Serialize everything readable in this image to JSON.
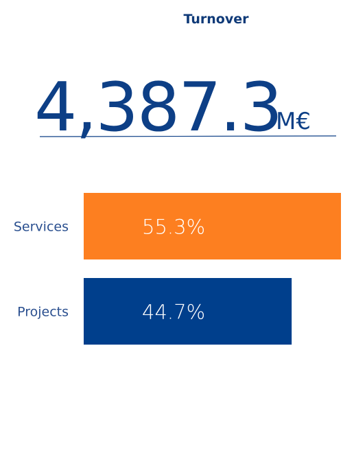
{
  "chart_data": {
    "type": "bar",
    "orientation": "horizontal",
    "title": "Turnover",
    "headline": {
      "text": "4,387.3",
      "unit": "M€"
    },
    "categories": [
      "Services",
      "Projects"
    ],
    "values": [
      55.3,
      44.7
    ],
    "value_labels": [
      "55.3%",
      "44.7%"
    ],
    "colors": [
      "#fd7f20",
      "#003f8c"
    ]
  }
}
